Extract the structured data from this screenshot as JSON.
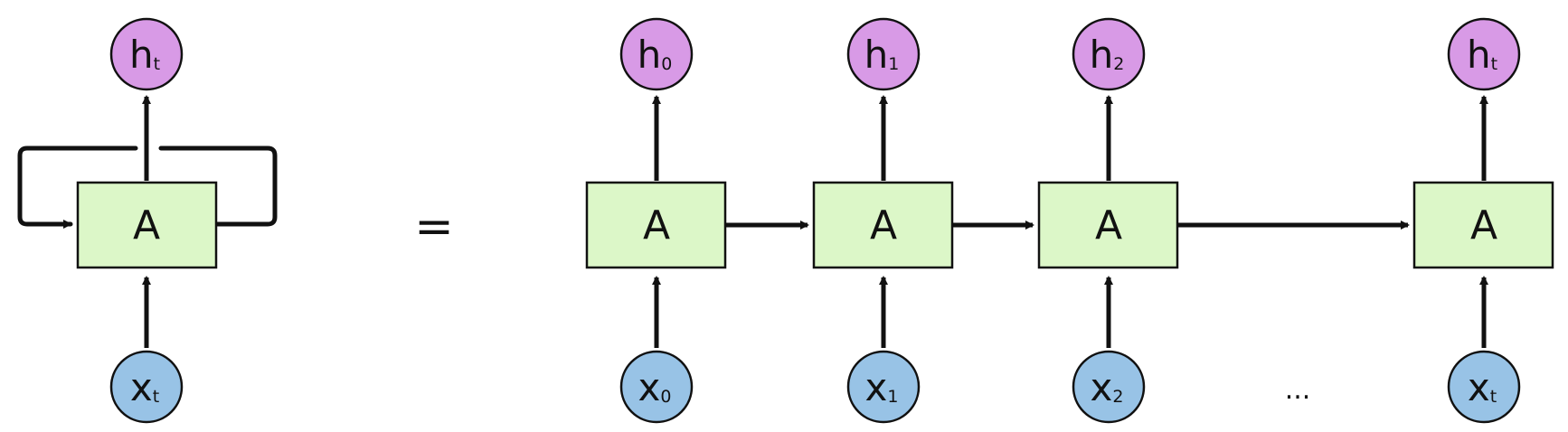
{
  "colors": {
    "cell_fill": "#dcf7c8",
    "hidden_fill": "#d89ae6",
    "input_fill": "#98c3e6",
    "stroke": "#111111",
    "background": "#ffffff"
  },
  "equals_sign": "=",
  "ellipsis": "...",
  "rolled": {
    "cell_label": "A",
    "hidden": {
      "main": "h",
      "sub": "t"
    },
    "input": {
      "main": "x",
      "sub": "t"
    }
  },
  "unrolled": [
    {
      "cell_label": "A",
      "hidden": {
        "main": "h",
        "sub": "0"
      },
      "input": {
        "main": "x",
        "sub": "0"
      }
    },
    {
      "cell_label": "A",
      "hidden": {
        "main": "h",
        "sub": "1"
      },
      "input": {
        "main": "x",
        "sub": "1"
      }
    },
    {
      "cell_label": "A",
      "hidden": {
        "main": "h",
        "sub": "2"
      },
      "input": {
        "main": "x",
        "sub": "2"
      }
    },
    {
      "cell_label": "A",
      "hidden": {
        "main": "h",
        "sub": "t"
      },
      "input": {
        "main": "x",
        "sub": "t"
      }
    }
  ]
}
